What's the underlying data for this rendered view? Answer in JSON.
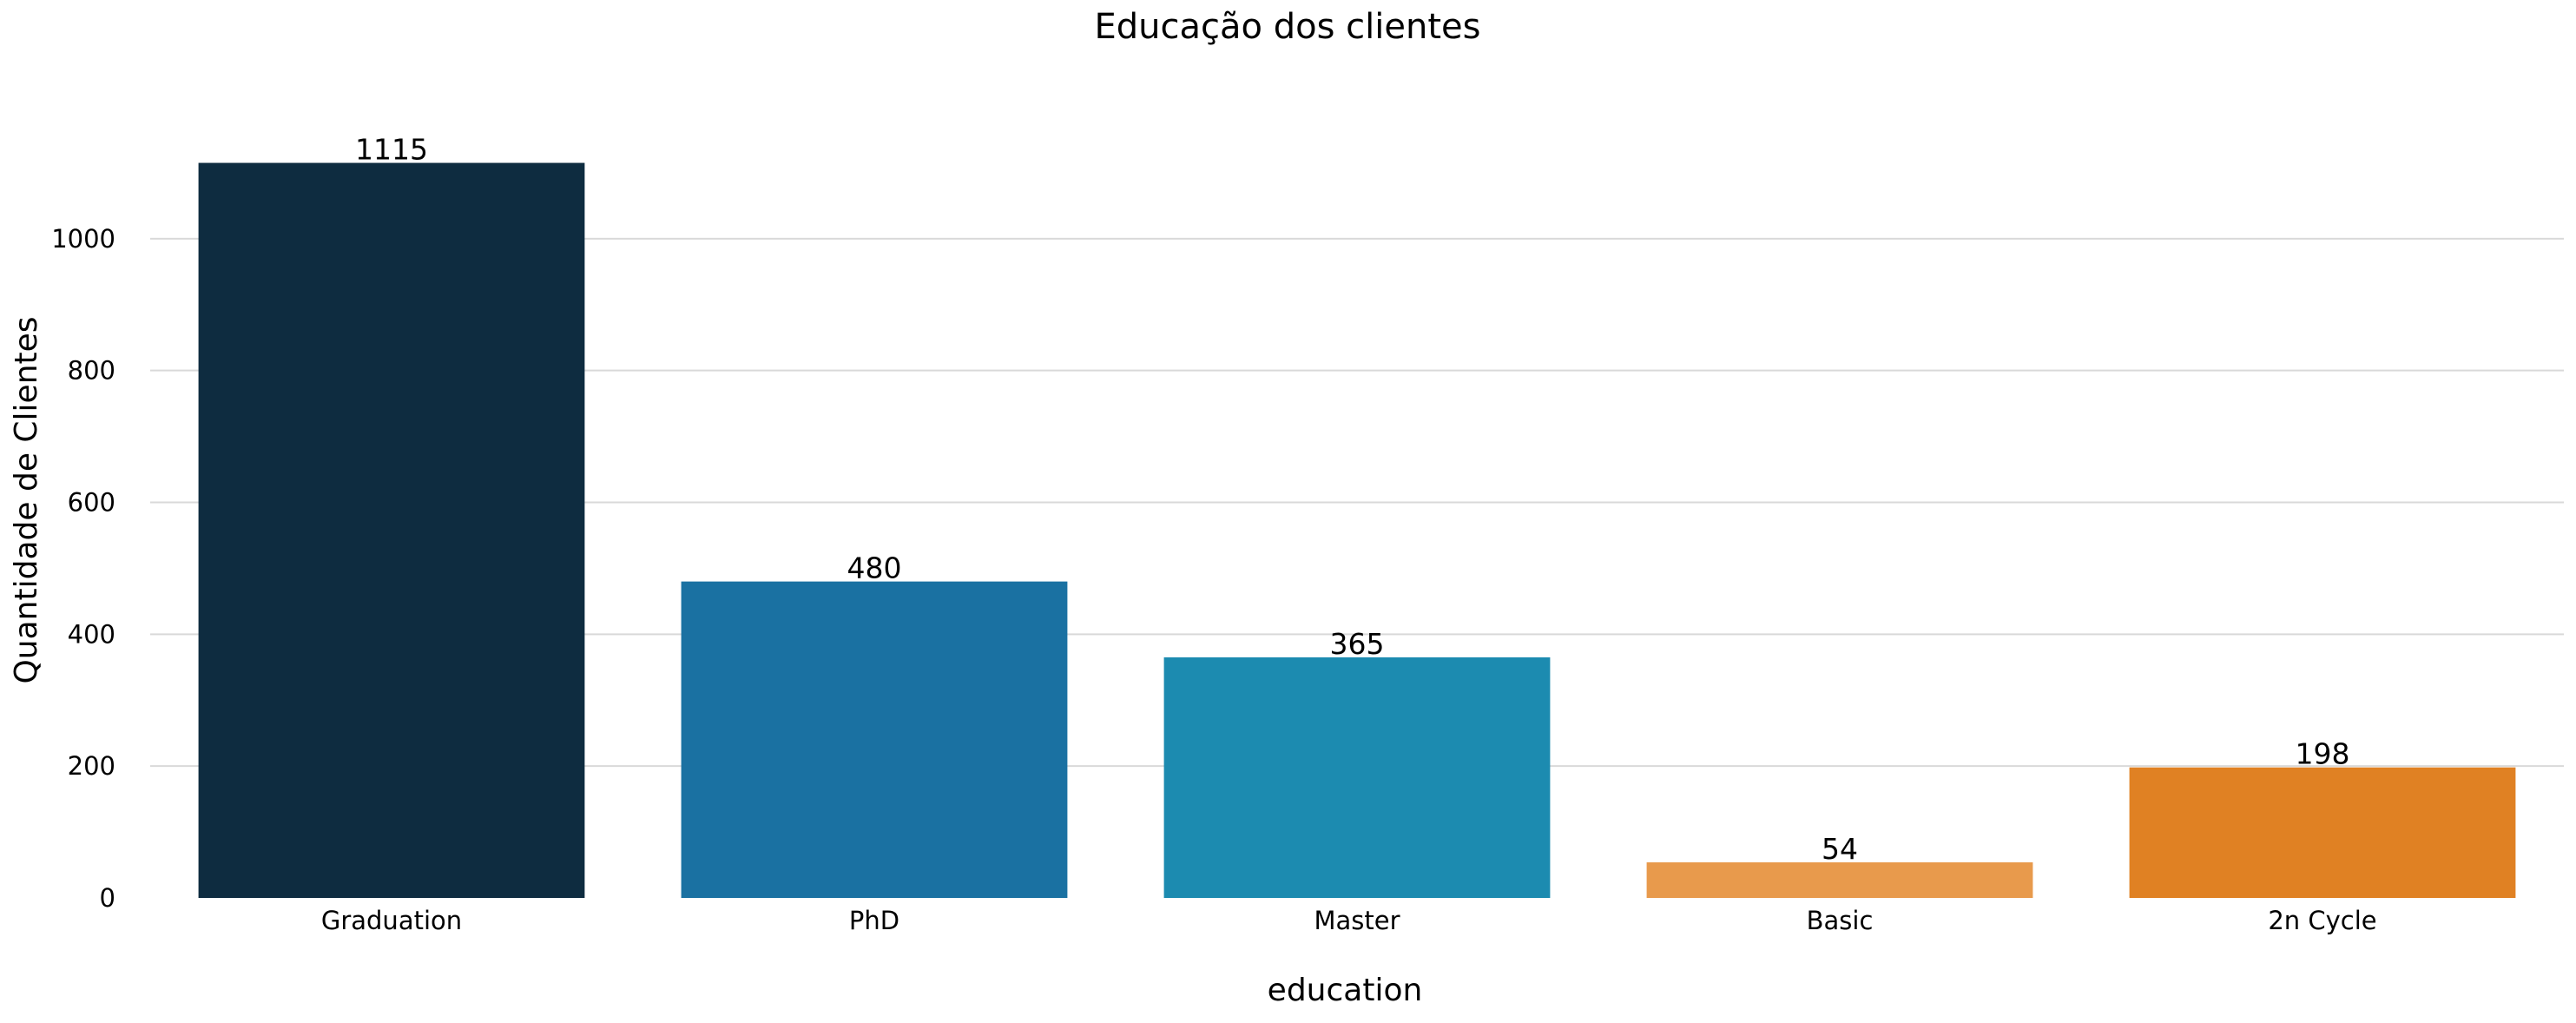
{
  "chart_data": {
    "type": "bar",
    "title": "Educação dos clientes",
    "xlabel": "education",
    "ylabel": "Quantidade de Clientes",
    "categories": [
      "Graduation",
      "PhD",
      "Master",
      "Basic",
      "2n Cycle"
    ],
    "values": [
      1115,
      480,
      365,
      54,
      198
    ],
    "data_labels": [
      "1115",
      "480",
      "365",
      "54",
      "198"
    ],
    "colors": [
      "#0e2c40",
      "#1a71a2",
      "#1c8bb0",
      "#e89a4c",
      "#e08123"
    ],
    "ylim": [
      0,
      1175
    ],
    "yticks": [
      0,
      200,
      400,
      600,
      800,
      1000
    ],
    "grid": "horizontal",
    "legend": "none"
  }
}
